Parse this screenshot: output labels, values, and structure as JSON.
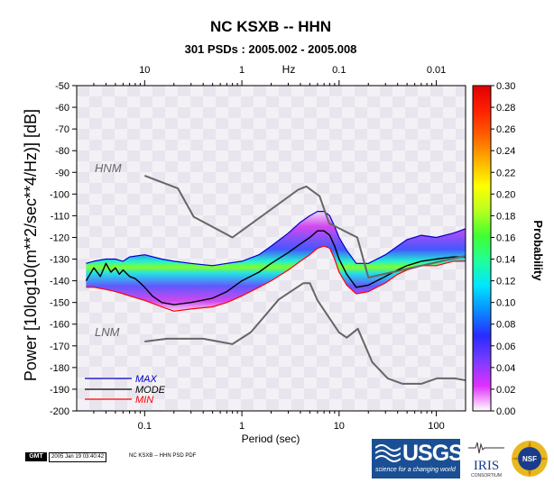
{
  "chart_data": {
    "type": "heatmap",
    "title": "NC KSXB -- HHN",
    "subtitle": "301 PSDs : 2005.002 - 2005.008",
    "xlabel": "Period (sec)",
    "ylabel": "Power [10log10(m**2/sec**4/Hz)] [dB]",
    "top_axis_label": "Hz",
    "colorbar_label": "Probability",
    "x_scale": "log",
    "xlim": [
      0.02,
      200
    ],
    "ylim": [
      -200,
      -50
    ],
    "x_ticks": [
      0.1,
      1,
      10,
      100
    ],
    "x_tick_labels": [
      "0.1",
      "1",
      "10",
      "100"
    ],
    "top_ticks_hz": [
      10,
      1,
      0.1,
      0.01
    ],
    "top_tick_labels": [
      "10",
      "1",
      "0.1",
      "0.01"
    ],
    "y_ticks": [
      -50,
      -60,
      -70,
      -80,
      -90,
      -100,
      -110,
      -120,
      -130,
      -140,
      -150,
      -160,
      -170,
      -180,
      -190,
      -200
    ],
    "y_tick_labels": [
      "-50",
      "-60",
      "-70",
      "-80",
      "-90",
      "-100",
      "-110",
      "-120",
      "-130",
      "-140",
      "-150",
      "-160",
      "-170",
      "-180",
      "-190",
      "-200"
    ],
    "colorbar_range": [
      0,
      0.3
    ],
    "colorbar_ticks": [
      0.0,
      0.02,
      0.04,
      0.06,
      0.08,
      0.1,
      0.12,
      0.14,
      0.16,
      0.18,
      0.2,
      0.22,
      0.24,
      0.26,
      0.28,
      0.3
    ],
    "colorbar_tick_labels": [
      "0.00",
      "0.02",
      "0.04",
      "0.06",
      "0.08",
      "0.10",
      "0.12",
      "0.14",
      "0.16",
      "0.18",
      "0.20",
      "0.22",
      "0.24",
      "0.26",
      "0.28",
      "0.30"
    ],
    "colorbar_colors": [
      "#ffffff",
      "#e030ff",
      "#7a3cff",
      "#2a2aff",
      "#0a8cff",
      "#00e5ff",
      "#20ff9a",
      "#40ff30",
      "#b8ff20",
      "#ffff00",
      "#ffb000",
      "#ff6000",
      "#ff2000",
      "#e00000"
    ],
    "annotations": [
      {
        "text": "HNM",
        "x": 0.028,
        "y": -90
      },
      {
        "text": "LNM",
        "x": 0.028,
        "y": -165
      }
    ],
    "legend_position": "bottom-left",
    "series": [
      {
        "name": "MAX",
        "color": "#0000cc",
        "x": [
          0.025,
          0.03,
          0.04,
          0.05,
          0.06,
          0.07,
          0.1,
          0.15,
          0.2,
          0.3,
          0.5,
          0.7,
          1,
          1.5,
          2,
          3,
          4,
          5,
          6,
          7,
          8,
          9,
          10,
          12,
          15,
          20,
          30,
          40,
          50,
          70,
          100,
          150,
          200
        ],
        "y": [
          -132,
          -131,
          -130,
          -130,
          -131,
          -129,
          -128,
          -130,
          -131,
          -132,
          -133,
          -132,
          -131,
          -128,
          -124,
          -118,
          -113,
          -110,
          -108,
          -108,
          -110,
          -115,
          -120,
          -126,
          -132,
          -132,
          -128,
          -124,
          -121,
          -119,
          -120,
          -118,
          -116
        ]
      },
      {
        "name": "MODE",
        "color": "#000000",
        "x": [
          0.025,
          0.03,
          0.035,
          0.04,
          0.045,
          0.05,
          0.055,
          0.06,
          0.07,
          0.08,
          0.09,
          0.1,
          0.12,
          0.15,
          0.2,
          0.3,
          0.5,
          0.7,
          1,
          1.5,
          2,
          3,
          4,
          5,
          6,
          7,
          8,
          9,
          10,
          12,
          15,
          20,
          30,
          40,
          50,
          70,
          100,
          150,
          200
        ],
        "y": [
          -140,
          -134,
          -138,
          -132,
          -136,
          -134,
          -137,
          -135,
          -138,
          -139,
          -141,
          -143,
          -147,
          -150,
          -151,
          -150,
          -148,
          -145,
          -140,
          -136,
          -132,
          -127,
          -123,
          -120,
          -117,
          -117,
          -119,
          -124,
          -130,
          -137,
          -143,
          -142,
          -138,
          -135,
          -133,
          -131,
          -130,
          -129,
          -129
        ]
      },
      {
        "name": "MIN",
        "color": "#ff0000",
        "x": [
          0.025,
          0.03,
          0.04,
          0.05,
          0.06,
          0.07,
          0.1,
          0.15,
          0.2,
          0.3,
          0.5,
          0.7,
          1,
          1.5,
          2,
          3,
          4,
          5,
          6,
          7,
          8,
          9,
          10,
          12,
          15,
          20,
          30,
          40,
          50,
          70,
          100,
          150,
          200
        ],
        "y": [
          -143,
          -143,
          -144,
          -145,
          -146,
          -147,
          -149,
          -152,
          -154,
          -153,
          -152,
          -150,
          -147,
          -143,
          -140,
          -135,
          -131,
          -128,
          -125,
          -124,
          -125,
          -130,
          -136,
          -142,
          -146,
          -145,
          -141,
          -137,
          -135,
          -133,
          -133,
          -131,
          -131
        ]
      },
      {
        "name": "HNM",
        "color": "#666666",
        "x": [
          0.1,
          0.22,
          0.32,
          0.8,
          3.8,
          4.6,
          6.3,
          7.9,
          15.4,
          20,
          354
        ],
        "y": [
          -91.5,
          -97.4,
          -110.5,
          -120,
          -98,
          -96.5,
          -101,
          -113.5,
          -120,
          -138.5,
          -126
        ]
      },
      {
        "name": "LNM",
        "color": "#666666",
        "x": [
          0.1,
          0.17,
          0.4,
          0.8,
          1.24,
          2.4,
          4.3,
          5,
          6,
          10,
          12,
          15.6,
          21.9,
          31.6,
          45,
          70,
          101,
          154,
          328,
          600
        ],
        "y": [
          -168,
          -166.7,
          -166.7,
          -169.2,
          -163.7,
          -148.6,
          -141.1,
          -141.1,
          -149,
          -163.8,
          -166.2,
          -162.1,
          -177.5,
          -185,
          -187.5,
          -187.5,
          -185,
          -185,
          -187.5,
          -184.4
        ]
      }
    ]
  },
  "legend": {
    "max_label": "MAX",
    "mode_label": "MODE",
    "min_label": "MIN"
  },
  "footer": {
    "gmt_badge": "GMT",
    "timestamp": "2005 Jan 19 03:40:42",
    "label": "NC KSXB -- HHN PSD PDF"
  },
  "logos": {
    "usgs_text": "USGS",
    "usgs_tagline": "science for a changing world",
    "iris_text": "IRIS",
    "iris_sub": "CONSORTIUM",
    "nsf_text": "NSF"
  }
}
